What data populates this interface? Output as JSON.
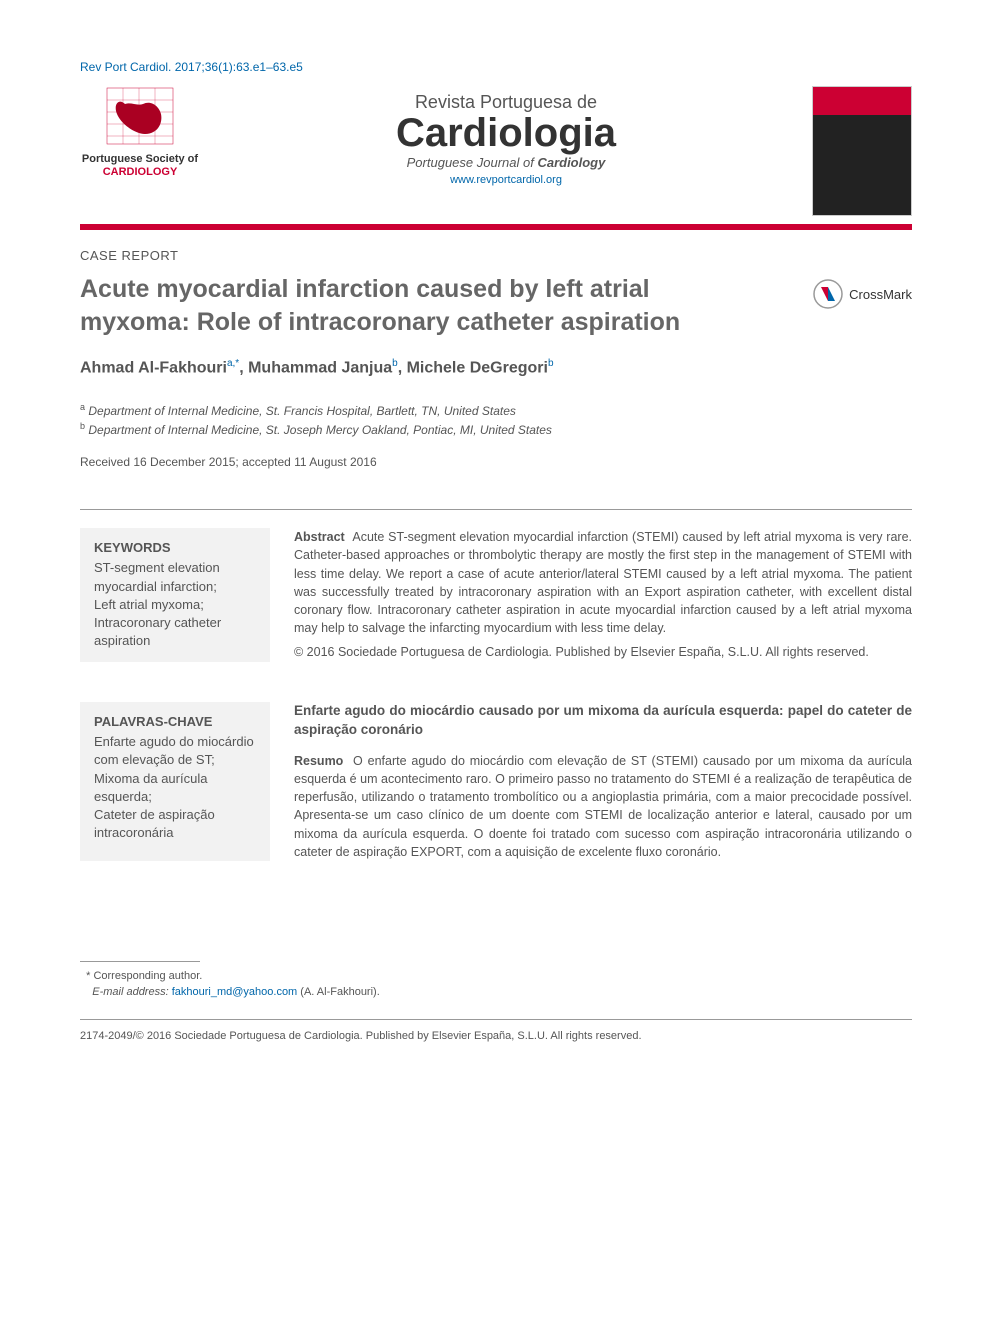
{
  "doi_line": "Rev Port Cardiol. 2017;36(1):63.e1–63.e5",
  "society": {
    "line1": "Portuguese Society of",
    "line2": "CARDIOLOGY"
  },
  "journal": {
    "supertitle": "Revista Portuguesa de",
    "title": "Cardiologia",
    "subtitle_plain": "Portuguese Journal of ",
    "subtitle_bold": "Cardiology",
    "url": "www.revportcardiol.org"
  },
  "article_type": "CASE REPORT",
  "article_title": "Acute myocardial infarction caused by left atrial myxoma: Role of intracoronary catheter aspiration",
  "crossmark_label": "CrossMark",
  "authors": [
    {
      "name": "Ahmad Al-Fakhouri",
      "aff": "a,*"
    },
    {
      "name": "Muhammad Janjua",
      "aff": "b"
    },
    {
      "name": "Michele DeGregori",
      "aff": "b"
    }
  ],
  "affiliations": [
    {
      "sup": "a",
      "text": "Department of Internal Medicine, St. Francis Hospital, Bartlett, TN, United States"
    },
    {
      "sup": "b",
      "text": "Department of Internal Medicine, St. Joseph Mercy Oakland, Pontiac, MI, United States"
    }
  ],
  "dates": "Received 16 December 2015; accepted 11 August 2016",
  "en": {
    "keywords_heading": "KEYWORDS",
    "keywords": "ST-segment elevation myocardial infarction;\nLeft atrial myxoma;\nIntracoronary catheter aspiration",
    "abstract_label": "Abstract",
    "abstract_text": "Acute ST-segment elevation myocardial infarction (STEMI) caused by left atrial myxoma is very rare. Catheter-based approaches or thrombolytic therapy are mostly the first step in the management of STEMI with less time delay. We report a case of acute anterior/lateral STEMI caused by a left atrial myxoma. The patient was successfully treated by intracoronary aspiration with an Export aspiration catheter, with excellent distal coronary flow. Intracoronary catheter aspiration in acute myocardial infarction caused by a left atrial myxoma may help to salvage the infarcting myocardium with less time delay.",
    "copyright": "© 2016 Sociedade Portuguesa de Cardiologia. Published by Elsevier España, S.L.U. All rights reserved."
  },
  "pt": {
    "keywords_heading": "PALAVRAS-CHAVE",
    "keywords": "Enfarte agudo do miocárdio com elevação de ST;\nMixoma da aurícula esquerda;\nCateter de aspiração intracoronária",
    "title": "Enfarte agudo do miocárdio causado por um mixoma da aurícula esquerda: papel do cateter de aspiração coronário",
    "abstract_label": "Resumo",
    "abstract_text": "O enfarte agudo do miocárdio com elevação de ST (STEMI) causado por um mixoma da aurícula esquerda é um acontecimento raro. O primeiro passo no tratamento do STEMI é a realização de terapêutica de reperfusão, utilizando o tratamento trombolítico ou a angioplastia primária, com a maior precocidade possível. Apresenta-se um caso clínico de um doente com STEMI de localização anterior e lateral, causado por um mixoma da aurícula esquerda. O doente foi tratado com sucesso com aspiração intracoronária utilizando o cateter de aspiração EXPORT, com a aquisição de excelente fluxo coronário."
  },
  "footnote": {
    "corresponding": "Corresponding author.",
    "email_label": "E-mail address:",
    "email": "fakhouri_md@yahoo.com",
    "email_name": "(A. Al-Fakhouri)."
  },
  "issn": "2174-2049/© 2016 Sociedade Portuguesa de Cardiologia. Published by Elsevier España, S.L.U. All rights reserved.",
  "colors": {
    "brand_red": "#cc0033",
    "link_blue": "#0066aa",
    "text_gray": "#555555",
    "bg_gray": "#f2f2f2"
  }
}
